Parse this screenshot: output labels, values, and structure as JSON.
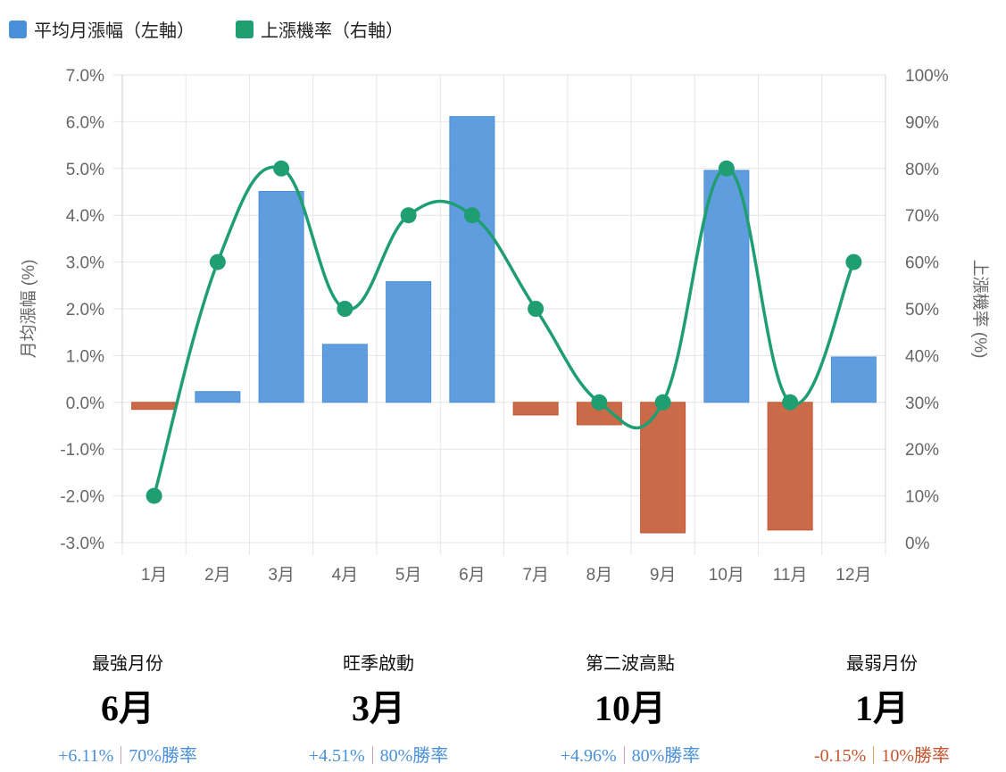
{
  "chart_data": {
    "type": "bar+line",
    "categories": [
      "1月",
      "2月",
      "3月",
      "4月",
      "5月",
      "6月",
      "7月",
      "8月",
      "9月",
      "10月",
      "11月",
      "12月"
    ],
    "series": [
      {
        "name": "平均月漲幅（左軸）",
        "type": "bar",
        "axis": "left",
        "values": [
          -0.15,
          0.23,
          4.51,
          1.24,
          2.58,
          6.11,
          -0.27,
          -0.48,
          -2.79,
          4.96,
          -2.73,
          0.97
        ]
      },
      {
        "name": "上漲機率（右軸）",
        "type": "line",
        "axis": "right",
        "smooth": true,
        "values": [
          10,
          60,
          80,
          50,
          70,
          70,
          50,
          30,
          30,
          80,
          30,
          60
        ]
      }
    ],
    "ylabel": "月均漲幅 (%)",
    "y2label": "上漲機率 (%)",
    "ylim": [
      -3,
      7
    ],
    "y2lim": [
      0,
      100
    ],
    "yticks": [
      "-3.0%",
      "-2.0%",
      "-1.0%",
      "0.0%",
      "1.0%",
      "2.0%",
      "3.0%",
      "4.0%",
      "5.0%",
      "6.0%",
      "7.0%"
    ],
    "y2ticks": [
      "0%",
      "10%",
      "20%",
      "30%",
      "40%",
      "50%",
      "60%",
      "70%",
      "80%",
      "90%",
      "100%"
    ],
    "grid": true,
    "legend": "top-left",
    "colors": {
      "positive": "#4a90d9",
      "negative": "#c4552f",
      "line": "#1f9e72"
    }
  },
  "stats": [
    {
      "label": "最強月份",
      "month": "6月",
      "change": "+6.11%",
      "winrate": "70%勝率",
      "color": "#4a90d9"
    },
    {
      "label": "旺季啟動",
      "month": "3月",
      "change": "+4.51%",
      "winrate": "80%勝率",
      "color": "#4a90d9"
    },
    {
      "label": "第二波高點",
      "month": "10月",
      "change": "+4.96%",
      "winrate": "80%勝率",
      "color": "#4a90d9"
    },
    {
      "label": "最弱月份",
      "month": "1月",
      "change": "-0.15%",
      "winrate": "10%勝率",
      "color": "#c4552f"
    }
  ]
}
